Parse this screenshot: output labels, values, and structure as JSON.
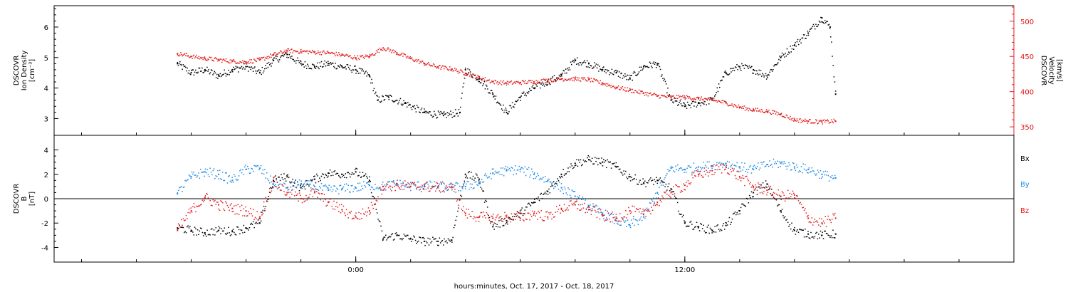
{
  "chart_data": [
    {
      "type": "scatter",
      "panel": "top",
      "ylabel_left": [
        "DSCOVR",
        "Ion Density",
        "[cm⁻³]"
      ],
      "ylabel_right": [
        "DSCOVR",
        "Velocity",
        "[km/s]"
      ],
      "y_left_ticks": [
        3,
        4,
        5,
        6
      ],
      "y_left_range": [
        2.45,
        6.7
      ],
      "y_right_ticks": [
        350,
        400,
        450,
        500
      ],
      "y_right_range": [
        338,
        522
      ],
      "colors": {
        "density": "#000000",
        "velocity": "#e41a1c"
      },
      "series": [
        {
          "key": "density",
          "x": [
            -6.5,
            -6.0,
            -5.5,
            -5.0,
            -4.5,
            -4.0,
            -3.5,
            -3.0,
            -2.5,
            -2.0,
            -1.5,
            -1.0,
            -0.5,
            0.0,
            0.5,
            0.8,
            1.2,
            1.8,
            2.5,
            3.2,
            3.8,
            4.0,
            4.5,
            5.0,
            5.5,
            6.0,
            6.5,
            7.0,
            7.5,
            8.0,
            8.5,
            9.0,
            9.5,
            10.0,
            10.5,
            11.0,
            11.5,
            12.0,
            12.5,
            13.0,
            13.5,
            14.0,
            14.5,
            15.0,
            15.5,
            16.0,
            16.5,
            17.0,
            17.3,
            17.5
          ],
          "values": [
            4.8,
            4.5,
            4.6,
            4.4,
            4.6,
            4.7,
            4.5,
            4.9,
            5.1,
            4.8,
            4.7,
            4.8,
            4.7,
            4.6,
            4.4,
            3.6,
            3.7,
            3.5,
            3.2,
            3.1,
            3.2,
            4.6,
            4.3,
            3.8,
            3.2,
            3.7,
            4.0,
            4.2,
            4.4,
            4.9,
            4.8,
            4.6,
            4.5,
            4.3,
            4.7,
            4.8,
            3.6,
            3.4,
            3.5,
            3.6,
            4.5,
            4.7,
            4.6,
            4.4,
            5.0,
            5.4,
            5.8,
            6.3,
            6.0,
            3.8
          ]
        },
        {
          "key": "velocity",
          "x": [
            -6.5,
            -6.0,
            -5.5,
            -5.0,
            -4.5,
            -4.0,
            -3.5,
            -3.0,
            -2.5,
            -2.0,
            -1.5,
            -1.0,
            -0.5,
            0.0,
            0.5,
            1.0,
            1.5,
            2.0,
            2.5,
            3.0,
            3.5,
            4.0,
            4.5,
            5.0,
            5.5,
            6.0,
            6.5,
            7.0,
            7.5,
            8.0,
            8.5,
            9.0,
            9.5,
            10.0,
            10.5,
            11.0,
            11.5,
            12.0,
            12.5,
            13.0,
            13.5,
            14.0,
            14.5,
            15.0,
            15.5,
            16.0,
            16.5,
            17.0,
            17.5
          ],
          "values": [
            454,
            450,
            447,
            445,
            443,
            442,
            445,
            452,
            458,
            457,
            456,
            455,
            452,
            448,
            450,
            462,
            455,
            447,
            440,
            435,
            432,
            426,
            420,
            414,
            412,
            413,
            414,
            416,
            418,
            418,
            417,
            412,
            406,
            402,
            398,
            394,
            392,
            392,
            390,
            388,
            384,
            378,
            374,
            372,
            368,
            360,
            358,
            357,
            358
          ]
        }
      ]
    },
    {
      "type": "scatter",
      "panel": "bottom",
      "ylabel_left": [
        "DSCOVR",
        "B",
        "[nT]"
      ],
      "y_ticks": [
        -4,
        -2,
        0,
        2,
        4
      ],
      "y_range": [
        -5.2,
        5.2
      ],
      "legend": [
        "Bx",
        "By",
        "Bz"
      ],
      "colors": {
        "bx": "#000000",
        "by": "#1e88e5",
        "bz": "#e41a1c"
      },
      "series": [
        {
          "key": "bx",
          "x": [
            -6.5,
            -6.0,
            -5.5,
            -5.0,
            -4.5,
            -4.0,
            -3.5,
            -3.0,
            -2.5,
            -2.0,
            -1.5,
            -1.0,
            -0.5,
            0.0,
            0.5,
            1.0,
            1.5,
            2.0,
            2.5,
            3.0,
            3.5,
            4.0,
            4.5,
            5.0,
            5.5,
            6.0,
            6.5,
            7.0,
            7.5,
            8.0,
            8.5,
            9.0,
            9.5,
            10.0,
            10.5,
            11.0,
            11.5,
            12.0,
            12.5,
            13.0,
            13.5,
            14.0,
            14.5,
            15.0,
            15.5,
            16.0,
            16.5,
            17.0,
            17.5
          ],
          "values": [
            -2.4,
            -2.6,
            -2.8,
            -2.6,
            -2.7,
            -2.4,
            -2.0,
            1.5,
            1.8,
            0.9,
            1.6,
            2.1,
            2.0,
            2.2,
            1.5,
            -3.3,
            -3.0,
            -3.3,
            -3.5,
            -3.5,
            -3.4,
            2.0,
            1.6,
            -2.3,
            -1.8,
            -1.2,
            -0.3,
            0.6,
            2.0,
            2.9,
            3.2,
            3.0,
            2.6,
            1.8,
            1.3,
            1.5,
            0.8,
            -2.0,
            -2.3,
            -2.6,
            -2.2,
            -1.0,
            0.5,
            1.2,
            -1.0,
            -2.6,
            -2.9,
            -3.0,
            -2.9
          ]
        },
        {
          "key": "by",
          "x": [
            -6.5,
            -6.0,
            -5.5,
            -5.0,
            -4.5,
            -4.0,
            -3.5,
            -3.0,
            -2.5,
            -2.0,
            -1.5,
            -1.0,
            -0.5,
            0.0,
            0.5,
            1.0,
            1.5,
            2.0,
            2.5,
            3.0,
            3.5,
            4.0,
            4.5,
            5.0,
            5.5,
            6.0,
            6.5,
            7.0,
            7.5,
            8.0,
            8.5,
            9.0,
            9.5,
            10.0,
            10.5,
            11.0,
            11.5,
            12.0,
            12.5,
            13.0,
            13.5,
            14.0,
            14.5,
            15.0,
            15.5,
            16.0,
            16.5,
            17.0,
            17.5
          ],
          "values": [
            0.4,
            1.8,
            2.2,
            2.0,
            1.5,
            2.4,
            2.5,
            1.2,
            0.9,
            1.2,
            1.0,
            0.7,
            0.8,
            0.9,
            1.1,
            1.0,
            1.2,
            1.0,
            1.1,
            1.0,
            0.9,
            1.0,
            1.3,
            2.1,
            2.3,
            2.4,
            2.0,
            1.5,
            0.9,
            0.2,
            -0.6,
            -1.2,
            -1.8,
            -2.2,
            -1.5,
            0.5,
            2.5,
            2.4,
            2.6,
            2.7,
            2.9,
            2.6,
            2.4,
            2.8,
            2.9,
            2.6,
            2.4,
            2.0,
            1.7
          ]
        },
        {
          "key": "bz",
          "x": [
            -6.5,
            -6.0,
            -5.5,
            -5.0,
            -4.5,
            -4.0,
            -3.5,
            -3.0,
            -2.5,
            -2.0,
            -1.5,
            -1.0,
            -0.5,
            0.0,
            0.5,
            1.0,
            1.5,
            2.0,
            2.5,
            3.0,
            3.5,
            4.0,
            4.5,
            5.0,
            5.5,
            6.0,
            6.5,
            7.0,
            7.5,
            8.0,
            8.5,
            9.0,
            9.5,
            10.0,
            10.5,
            11.0,
            11.5,
            12.0,
            12.5,
            13.0,
            13.5,
            14.0,
            14.5,
            15.0,
            15.5,
            16.0,
            16.5,
            17.0,
            17.5
          ],
          "values": [
            -2.6,
            -1.0,
            0.1,
            -0.5,
            -0.8,
            -1.0,
            -1.5,
            1.4,
            0.5,
            0.0,
            0.5,
            -0.3,
            -0.9,
            -1.5,
            -1.0,
            1.0,
            1.1,
            1.0,
            1.0,
            0.9,
            1.0,
            -1.2,
            -1.5,
            -1.6,
            -1.5,
            -1.6,
            -1.2,
            -1.5,
            -0.8,
            -0.5,
            -0.9,
            -1.4,
            -1.6,
            -1.0,
            -1.3,
            -0.3,
            0.5,
            1.1,
            2.0,
            2.3,
            2.6,
            1.8,
            1.0,
            0.7,
            0.2,
            0.3,
            -1.6,
            -2.0,
            -1.6
          ]
        }
      ]
    }
  ],
  "x_axis": {
    "range_hours": [
      -11,
      24
    ],
    "tick_labels": [
      {
        "at": 0,
        "text": "0:00"
      },
      {
        "at": 12,
        "text": "12:00"
      }
    ],
    "minor_step_hours": 2,
    "title": "hours:minutes, Oct. 17, 2017 - Oct. 18, 2017"
  }
}
